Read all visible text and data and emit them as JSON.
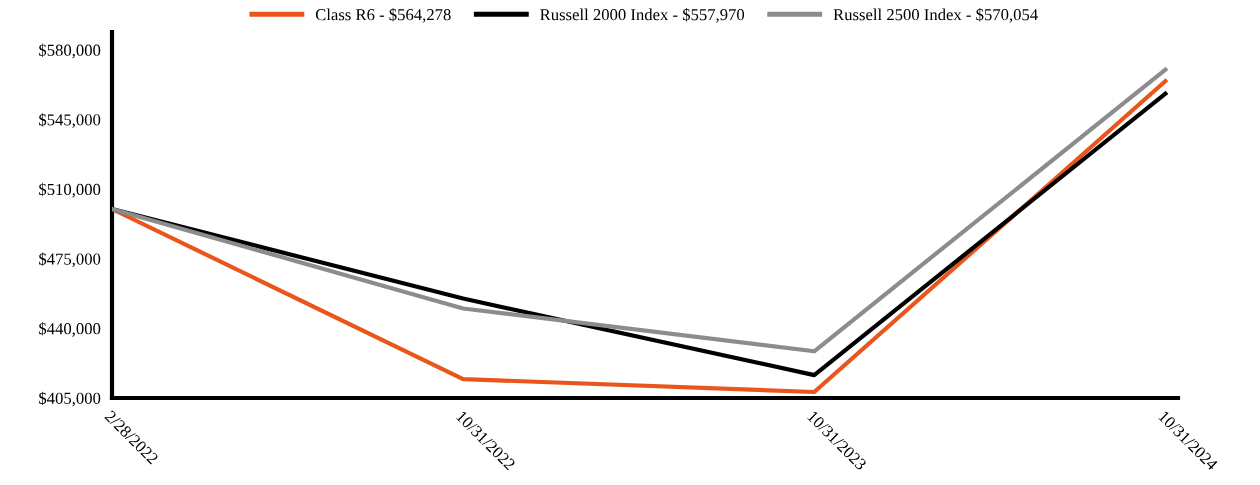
{
  "chart_data": {
    "type": "line",
    "categories": [
      "2/28/2022",
      "10/31/2022",
      "10/31/2023",
      "10/31/2024"
    ],
    "series": [
      {
        "name": "Class R6 - $564,278",
        "color": "#e8561b",
        "values": [
          500000,
          414500,
          408000,
          564278
        ]
      },
      {
        "name": "Russell 2000 Index - $557,970",
        "color": "#000000",
        "values": [
          500000,
          455000,
          416500,
          557970
        ]
      },
      {
        "name": "Russell 2500 Index - $570,054",
        "color": "#8c8c8c",
        "values": [
          500000,
          450000,
          428500,
          570054
        ]
      }
    ],
    "ylim": [
      405000,
      589000
    ],
    "yticks": [
      {
        "value": 405000,
        "label": "$405,000"
      },
      {
        "value": 440000,
        "label": "$440,000"
      },
      {
        "value": 475000,
        "label": "$475,000"
      },
      {
        "value": 510000,
        "label": "$510,000"
      },
      {
        "value": 545000,
        "label": "$545,000"
      },
      {
        "value": 580000,
        "label": "$580,000"
      }
    ],
    "grid": false,
    "legend": "top",
    "marker": "none",
    "line_style": "solid"
  }
}
